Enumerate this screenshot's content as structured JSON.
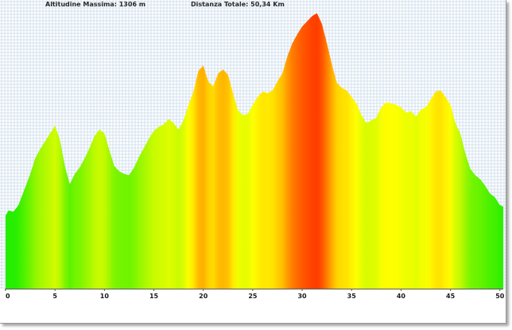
{
  "header": {
    "max_altitude": "Altitudine Massima: 1306 m",
    "total_distance": "Distanza Totale: 50,34 Km"
  },
  "colors": {
    "grid": "#d3e0ee",
    "low": "#22ee00",
    "mid": "#ffff00",
    "high": "#ff3c00",
    "axis": "#5a5a5a"
  },
  "chart_data": {
    "type": "area",
    "title": "",
    "xlabel": "",
    "ylabel": "",
    "x_ticks": [
      0,
      5,
      10,
      15,
      20,
      25,
      30,
      35,
      40,
      45,
      50
    ],
    "x_tick_labels": [
      "0",
      "5",
      "10",
      "15",
      "20",
      "25",
      "30",
      "35",
      "40",
      "45",
      "50"
    ],
    "xlim": [
      0,
      50.34
    ],
    "ylim": [
      250,
      1320
    ],
    "y_tick_labels_shown": false,
    "grid": true,
    "fill": "gradient by altitude (green low, yellow mid, red high)",
    "series": [
      {
        "x": [
          0,
          0.3,
          0.8,
          1.3,
          2,
          2.5,
          3,
          3.5,
          4,
          4.5,
          5,
          5.5,
          6,
          6.5,
          7,
          7.5,
          8,
          8.5,
          9,
          9.5,
          10,
          10.5,
          11,
          11.5,
          12,
          12.5,
          13,
          13.5,
          14,
          14.5,
          15,
          15.5,
          16,
          16.5,
          17,
          17.5,
          18,
          18.5,
          19,
          19.5,
          20,
          20.5,
          21,
          21.5,
          22,
          22.5,
          23,
          23.5,
          24,
          24.5,
          25,
          25.5,
          26,
          26.5,
          27,
          27.5,
          28,
          28.5,
          29,
          29.5,
          30,
          30.5,
          31,
          31.5,
          32,
          32.5,
          33,
          33.5,
          34,
          34.5,
          35,
          35.5,
          36,
          36.5,
          37,
          37.5,
          38,
          38.5,
          39,
          39.5,
          40,
          40.5,
          41,
          41.5,
          42,
          42.5,
          43,
          43.5,
          44,
          44.5,
          45,
          45.5,
          46,
          46.5,
          47,
          47.5,
          48,
          48.5,
          49,
          49.5,
          50,
          50.34
        ],
        "y": [
          530,
          550,
          545,
          570,
          640,
          690,
          750,
          785,
          815,
          845,
          875,
          820,
          720,
          650,
          690,
          715,
          750,
          790,
          835,
          860,
          845,
          780,
          720,
          700,
          690,
          685,
          715,
          755,
          790,
          825,
          855,
          870,
          880,
          900,
          885,
          860,
          895,
          955,
          1005,
          1085,
          1105,
          1045,
          1025,
          1075,
          1090,
          1070,
          1000,
          935,
          915,
          920,
          955,
          985,
          1005,
          1000,
          1010,
          1045,
          1075,
          1140,
          1190,
          1225,
          1255,
          1275,
          1295,
          1306,
          1265,
          1190,
          1110,
          1040,
          1020,
          1010,
          985,
          960,
          915,
          885,
          895,
          905,
          945,
          965,
          960,
          955,
          945,
          925,
          930,
          910,
          935,
          945,
          975,
          1005,
          1010,
          985,
          955,
          885,
          845,
          770,
          710,
          685,
          670,
          645,
          615,
          600,
          570,
          565
        ]
      }
    ]
  }
}
